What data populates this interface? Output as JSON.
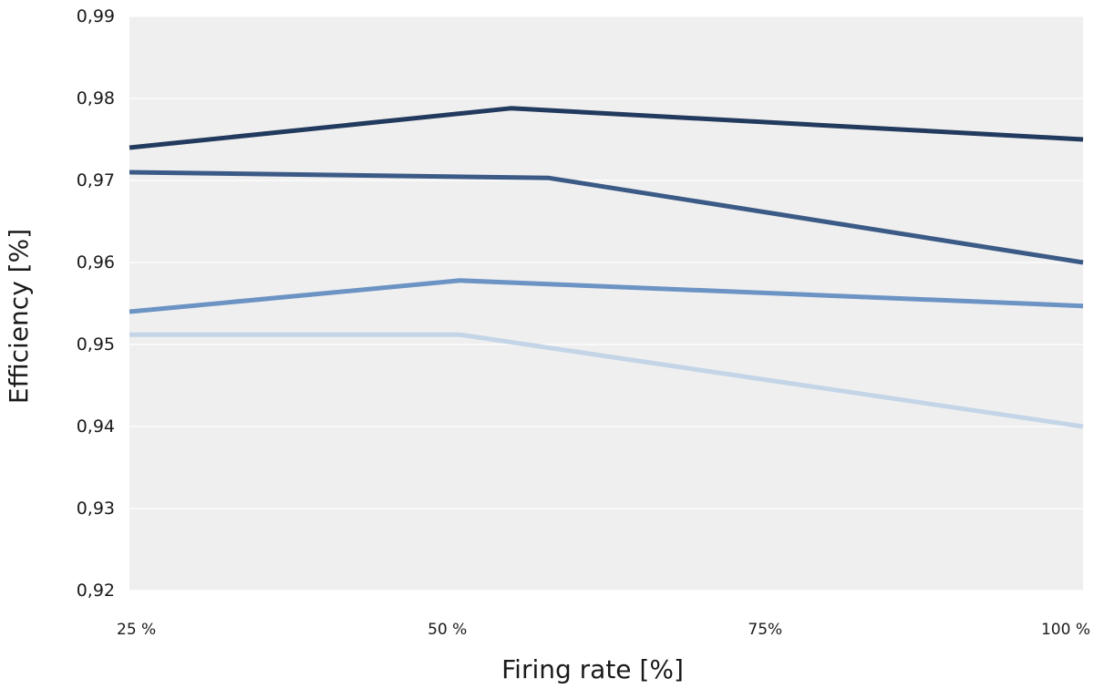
{
  "chart_data": {
    "type": "line",
    "xlabel": "Firing rate [%]",
    "ylabel": "Efficiency [%]",
    "x_ticks": [
      {
        "value": 25,
        "label": "25 %"
      },
      {
        "value": 50,
        "label": "50 %"
      },
      {
        "value": 75,
        "label": "75%"
      },
      {
        "value": 100,
        "label": "100 %"
      }
    ],
    "y_ticks": [
      {
        "value": 0.92,
        "label": "0,92"
      },
      {
        "value": 0.93,
        "label": "0,93"
      },
      {
        "value": 0.94,
        "label": "0,94"
      },
      {
        "value": 0.95,
        "label": "0,95"
      },
      {
        "value": 0.96,
        "label": "0,96"
      },
      {
        "value": 0.97,
        "label": "0,97"
      },
      {
        "value": 0.98,
        "label": "0,98"
      },
      {
        "value": 0.99,
        "label": "0,99"
      }
    ],
    "xlim": [
      25,
      100
    ],
    "ylim": [
      0.92,
      0.99
    ],
    "grid": "horizontal",
    "legend": "none",
    "plot_background": "#efefef",
    "series": [
      {
        "color": "#223a5e",
        "points": [
          [
            25,
            0.974
          ],
          [
            55,
            0.9788
          ],
          [
            100,
            0.975
          ]
        ]
      },
      {
        "color": "#3b5a86",
        "points": [
          [
            25,
            0.971
          ],
          [
            58,
            0.9703
          ],
          [
            100,
            0.96
          ]
        ]
      },
      {
        "color": "#6b93c3",
        "points": [
          [
            25,
            0.954
          ],
          [
            51,
            0.9578
          ],
          [
            100,
            0.9547
          ]
        ]
      },
      {
        "color": "#c4d5e8",
        "points": [
          [
            25,
            0.9512
          ],
          [
            51,
            0.9512
          ],
          [
            100,
            0.94
          ]
        ]
      }
    ]
  }
}
